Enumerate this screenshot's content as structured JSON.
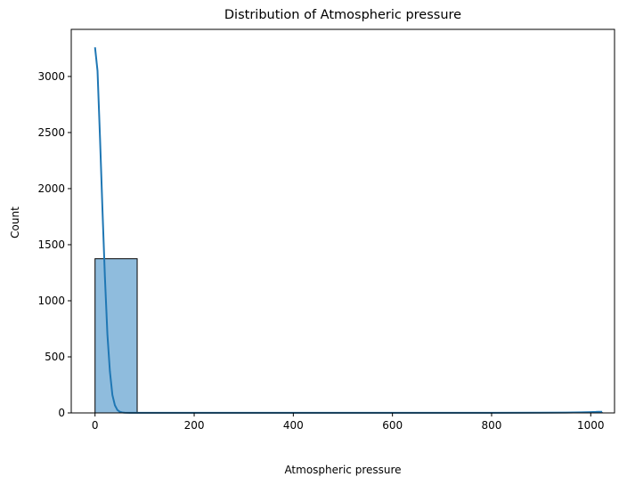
{
  "chart_data": {
    "type": "histogram",
    "title": "Distribution of Atmospheric pressure",
    "xlabel": "Atmospheric pressure",
    "ylabel": "Count",
    "xlim": [
      -48,
      1048
    ],
    "ylim": [
      0,
      3420
    ],
    "xticks": [
      0,
      200,
      400,
      600,
      800,
      1000
    ],
    "yticks": [
      0,
      500,
      1000,
      1500,
      2000,
      2500,
      3000
    ],
    "bins": [
      {
        "x0": 0,
        "x1": 85,
        "count": 1375
      },
      {
        "x0": 85,
        "x1": 170,
        "count": 0
      },
      {
        "x0": 170,
        "x1": 256,
        "count": 0
      },
      {
        "x0": 256,
        "x1": 341,
        "count": 0
      },
      {
        "x0": 341,
        "x1": 426,
        "count": 0
      },
      {
        "x0": 426,
        "x1": 511,
        "count": 0
      },
      {
        "x0": 511,
        "x1": 597,
        "count": 0
      },
      {
        "x0": 597,
        "x1": 682,
        "count": 0
      },
      {
        "x0": 682,
        "x1": 767,
        "count": 0
      },
      {
        "x0": 767,
        "x1": 852,
        "count": 0
      },
      {
        "x0": 852,
        "x1": 938,
        "count": 0
      },
      {
        "x0": 938,
        "x1": 1023,
        "count": 3
      }
    ],
    "kde": {
      "x": [
        0,
        5,
        10,
        15,
        20,
        25,
        30,
        35,
        40,
        45,
        50,
        55,
        60,
        70,
        80,
        100,
        200,
        400,
        600,
        800,
        900,
        950,
        980,
        1000,
        1010,
        1015,
        1020,
        1023
      ],
      "y": [
        3260,
        3050,
        2450,
        1800,
        1210,
        700,
        370,
        160,
        68,
        26,
        10,
        4,
        2,
        1,
        1,
        1,
        1,
        1,
        1,
        1,
        2,
        3,
        5,
        7,
        9,
        10,
        10,
        10
      ]
    },
    "colors": {
      "bar_fill": "#8fbcdd",
      "bar_edge": "#000000",
      "kde_line": "#1f77b4"
    },
    "grid": false,
    "legend": "none"
  }
}
